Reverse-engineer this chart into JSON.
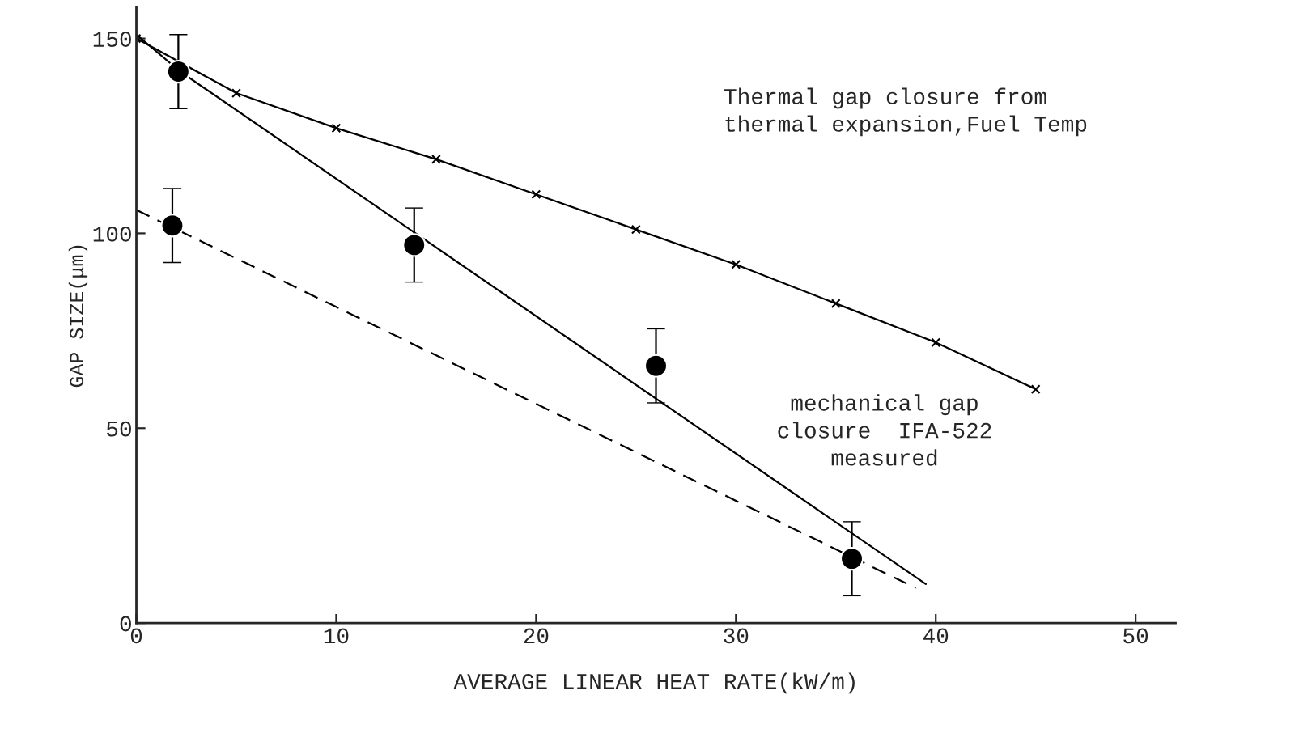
{
  "chart_data": {
    "type": "line",
    "xlabel": "AVERAGE LINEAR HEAT RATE(kW/m)",
    "ylabel": "GAP SIZE(μm)",
    "xlim": [
      0,
      52
    ],
    "ylim": [
      0,
      158
    ],
    "xticks": [
      0,
      10,
      20,
      30,
      40,
      50
    ],
    "yticks": [
      0,
      50,
      100,
      150
    ],
    "grid": false,
    "legend": false,
    "series": [
      {
        "color": "#000000",
        "marker": "cross",
        "line_style": "solid",
        "x": [
          0,
          5,
          10,
          15,
          20,
          25,
          30,
          35,
          40,
          45
        ],
        "values": [
          150,
          136,
          127,
          119,
          110,
          101,
          92,
          82,
          72,
          60
        ]
      },
      {
        "color": "#000000",
        "marker": "none",
        "line_style": "solid",
        "x": [
          0,
          2.2,
          39.5
        ],
        "values": [
          151,
          141.5,
          10
        ]
      },
      {
        "color": "#000000",
        "marker": "none",
        "line_style": "dashed",
        "x": [
          0,
          39
        ],
        "values": [
          106,
          9
        ]
      },
      {
        "type": "scatter",
        "color": "#000000",
        "marker": "circle",
        "x": [
          1.8,
          2.1,
          13.9,
          26,
          35.8
        ],
        "values": [
          102,
          141.5,
          97,
          66,
          16.5
        ],
        "errors": [
          9.5,
          9.5,
          9.5,
          9.5,
          9.5
        ]
      }
    ],
    "annotations": [
      "Thermal gap closure from\nthermal expansion,Fuel Temp",
      "mechanical gap\nclosure  IFA-522\nmeasured"
    ]
  }
}
